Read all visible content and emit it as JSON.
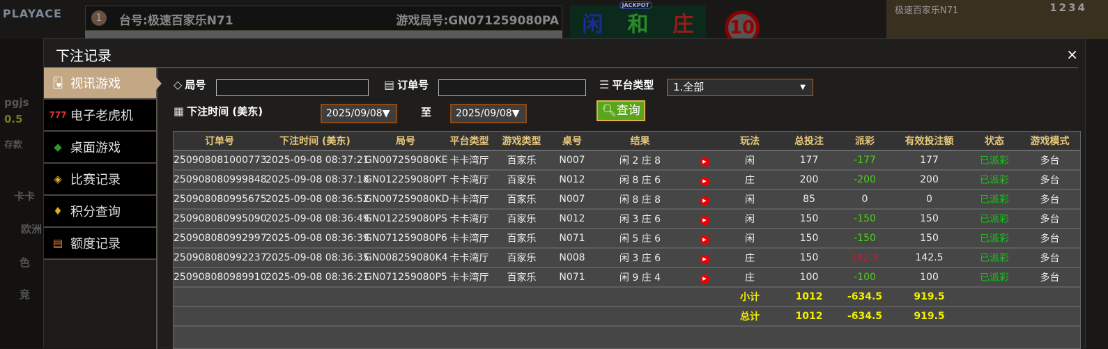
{
  "background": {
    "logo": "PLAYACE",
    "table_badge": "1",
    "table_name": "台号:极速百家乐N71",
    "game_round": "游戏局号:GN071259080PA",
    "bets": [
      "闲",
      "和",
      "庄"
    ],
    "jackpot": "JACKPOT",
    "timer": "10",
    "video_title": "极速百家乐N71",
    "video_numbers": "1234",
    "left_items": [
      "pgjs",
      "0.5",
      "存款",
      "卡卡",
      "欧洲",
      "色",
      "竞"
    ]
  },
  "modal": {
    "title": "下注记录",
    "close": "×"
  },
  "sidebar": {
    "items": [
      {
        "label": "视讯游戏",
        "icon": "playing-cards-icon",
        "active": true
      },
      {
        "label": "电子老虎机",
        "icon": "slot-777-icon"
      },
      {
        "label": "桌面游戏",
        "icon": "chips-icon"
      },
      {
        "label": "比赛记录",
        "icon": "ticket-icon"
      },
      {
        "label": "积分查询",
        "icon": "diamond-icon"
      },
      {
        "label": "额度记录",
        "icon": "document-icon"
      }
    ]
  },
  "filters": {
    "round_label": "局号",
    "round_value": "",
    "order_label": "订单号",
    "order_value": "",
    "platform_label": "平台类型",
    "platform_value": "1.全部",
    "time_label": "下注时间 (美东)",
    "date_from": "2025/09/08▼",
    "to_label": "至",
    "date_to": "2025/09/08▼",
    "query_label": "查询"
  },
  "table": {
    "headers": [
      "订单号",
      "下注时间 (美东)",
      "局号",
      "平台类型",
      "游戏类型",
      "桌号",
      "结果",
      "",
      "玩法",
      "总投注",
      "派彩",
      "有效投注额",
      "状态",
      "游戏模式"
    ],
    "rows": [
      {
        "order": "250908081000773",
        "time": "2025-09-08 08:37:21",
        "round": "GN007259080KE",
        "platform": "卡卡湾厅",
        "game": "百家乐",
        "table": "N007",
        "result": "闲 2 庄 8",
        "play": "闲",
        "bet": "177",
        "payout": "-177",
        "valid": "177",
        "status": "已派彩",
        "mode": "多台"
      },
      {
        "order": "250908080999848",
        "time": "2025-09-08 08:37:18",
        "round": "GN012259080PT",
        "platform": "卡卡湾厅",
        "game": "百家乐",
        "table": "N012",
        "result": "闲 8 庄 6",
        "play": "庄",
        "bet": "200",
        "payout": "-200",
        "valid": "200",
        "status": "已派彩",
        "mode": "多台"
      },
      {
        "order": "250908080995675",
        "time": "2025-09-08 08:36:52",
        "round": "GN007259080KD",
        "platform": "卡卡湾厅",
        "game": "百家乐",
        "table": "N007",
        "result": "闲 8 庄 8",
        "play": "闲",
        "bet": "85",
        "payout": "0",
        "valid": "0",
        "status": "已派彩",
        "mode": "多台"
      },
      {
        "order": "250908080995090",
        "time": "2025-09-08 08:36:49",
        "round": "GN012259080PS",
        "platform": "卡卡湾厅",
        "game": "百家乐",
        "table": "N012",
        "result": "闲 3 庄 6",
        "play": "闲",
        "bet": "150",
        "payout": "-150",
        "valid": "150",
        "status": "已派彩",
        "mode": "多台"
      },
      {
        "order": "250908080992997",
        "time": "2025-09-08 08:36:39",
        "round": "GN071259080P6",
        "platform": "卡卡湾厅",
        "game": "百家乐",
        "table": "N071",
        "result": "闲 5 庄 6",
        "play": "闲",
        "bet": "150",
        "payout": "-150",
        "valid": "150",
        "status": "已派彩",
        "mode": "多台"
      },
      {
        "order": "250908080992237",
        "time": "2025-09-08 08:36:35",
        "round": "GN008259080K4",
        "platform": "卡卡湾厅",
        "game": "百家乐",
        "table": "N008",
        "result": "闲 3 庄 6",
        "play": "庄",
        "bet": "150",
        "payout": "142.5",
        "valid": "142.5",
        "status": "已派彩",
        "mode": "多台"
      },
      {
        "order": "250908080989910",
        "time": "2025-09-08 08:36:21",
        "round": "GN071259080P5",
        "platform": "卡卡湾厅",
        "game": "百家乐",
        "table": "N071",
        "result": "闲 9 庄 4",
        "play": "庄",
        "bet": "100",
        "payout": "-100",
        "valid": "100",
        "status": "已派彩",
        "mode": "多台"
      }
    ],
    "subtotal": {
      "label": "小计",
      "bet": "1012",
      "payout": "-634.5",
      "valid": "919.5"
    },
    "total": {
      "label": "总计",
      "bet": "1012",
      "payout": "-634.5",
      "valid": "919.5"
    }
  },
  "colors": {
    "accent": "#c4a784",
    "header_text": "#e8c87a",
    "negative": "#4cd01a",
    "positive": "#d0143c",
    "status": "#17c417",
    "sum": "#f0f000",
    "query_button": "#5aa51b"
  }
}
